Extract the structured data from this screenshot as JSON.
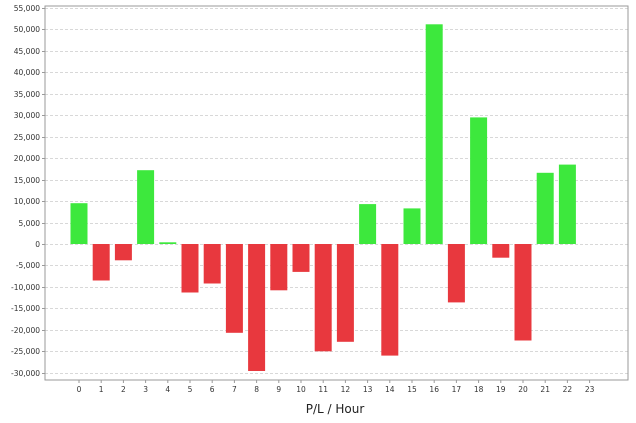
{
  "chart_data": {
    "type": "bar",
    "xlabel": "P/L / Hour",
    "ylabel": "",
    "categories": [
      "0",
      "1",
      "2",
      "3",
      "4",
      "5",
      "6",
      "7",
      "8",
      "9",
      "10",
      "11",
      "12",
      "13",
      "14",
      "15",
      "16",
      "17",
      "18",
      "19",
      "20",
      "21",
      "22",
      "23"
    ],
    "values": [
      9500,
      -8500,
      -3800,
      17200,
      400,
      -11300,
      -9200,
      -20700,
      -29600,
      -10800,
      -6500,
      -25000,
      -22800,
      9300,
      -26000,
      8300,
      51200,
      -13600,
      29500,
      -3200,
      -22500,
      16600,
      18500,
      0
    ],
    "ylim": [
      -31000,
      55000
    ],
    "yticks": [
      -30000,
      -25000,
      -20000,
      -15000,
      -10000,
      -5000,
      0,
      5000,
      10000,
      15000,
      20000,
      25000,
      30000,
      35000,
      40000,
      45000,
      50000,
      55000
    ],
    "ytick_labels": [
      "-30,000",
      "-25,000",
      "-20,000",
      "-15,000",
      "-10,000",
      "-5,000",
      "0",
      "5,000",
      "10,000",
      "15,000",
      "20,000",
      "25,000",
      "30,000",
      "35,000",
      "40,000",
      "45,000",
      "50,000",
      "55,000"
    ],
    "grid": true,
    "colors": {
      "positive": "#3de83d",
      "negative": "#e8383e",
      "grid": "#d8d8d8",
      "frame": "#9a9a9a"
    }
  }
}
